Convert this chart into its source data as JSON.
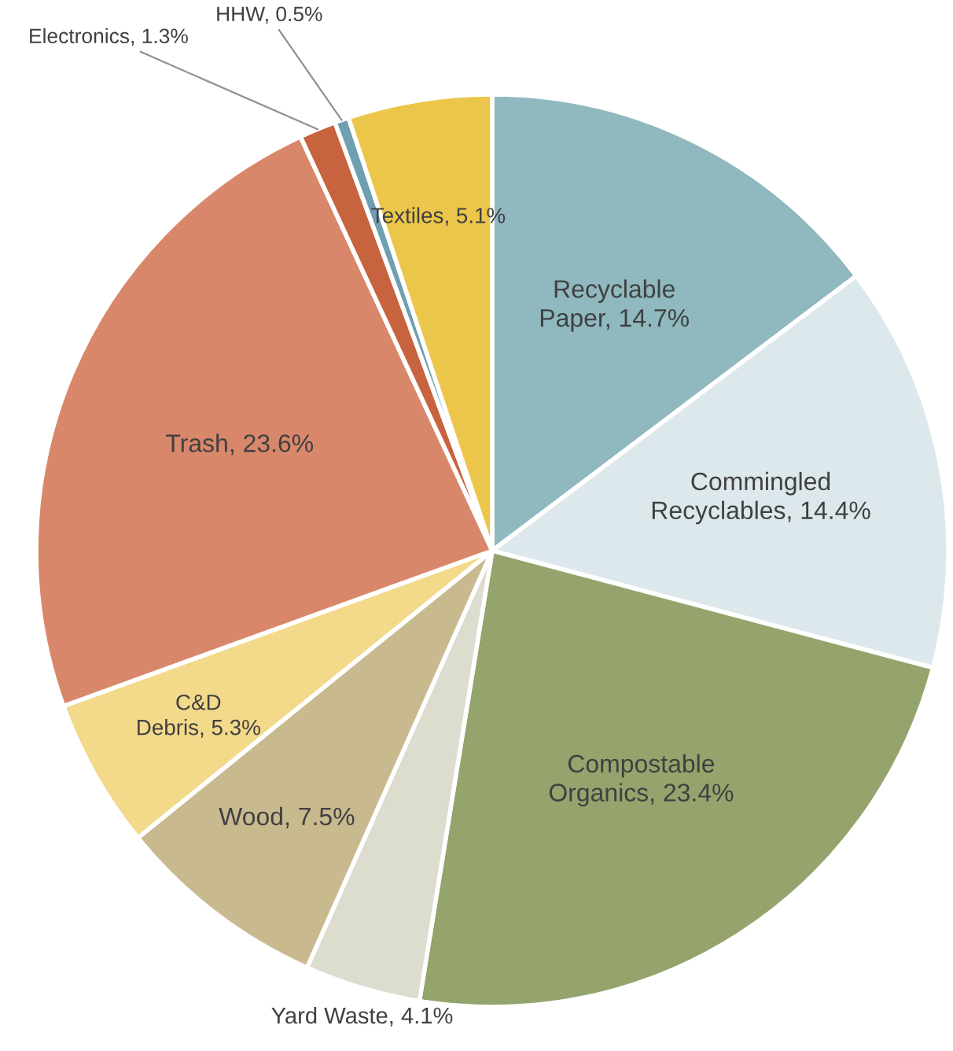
{
  "chart_data": {
    "type": "pie",
    "categories": [
      "Recyclable Paper",
      "Commingled Recyclables",
      "Compostable Organics",
      "Yard Waste",
      "Wood",
      "C&D Debris",
      "Trash",
      "Electronics",
      "HHW",
      "Textiles"
    ],
    "values": [
      14.7,
      14.4,
      23.4,
      4.1,
      7.5,
      5.3,
      23.6,
      1.3,
      0.5,
      5.1
    ],
    "value_labels": [
      "14.7%",
      "14.4%",
      "23.4%",
      "4.1%",
      "7.5%",
      "5.3%",
      "23.6%",
      "1.3%",
      "0.5%",
      "5.1%"
    ],
    "colors": [
      "#8fb8bf",
      "#dde8ec",
      "#94a46c",
      "#dcdccf",
      "#c9b98f",
      "#f3d98a",
      "#d9876a",
      "#c7643f",
      "#6f9fb0",
      "#ecc64a"
    ]
  }
}
